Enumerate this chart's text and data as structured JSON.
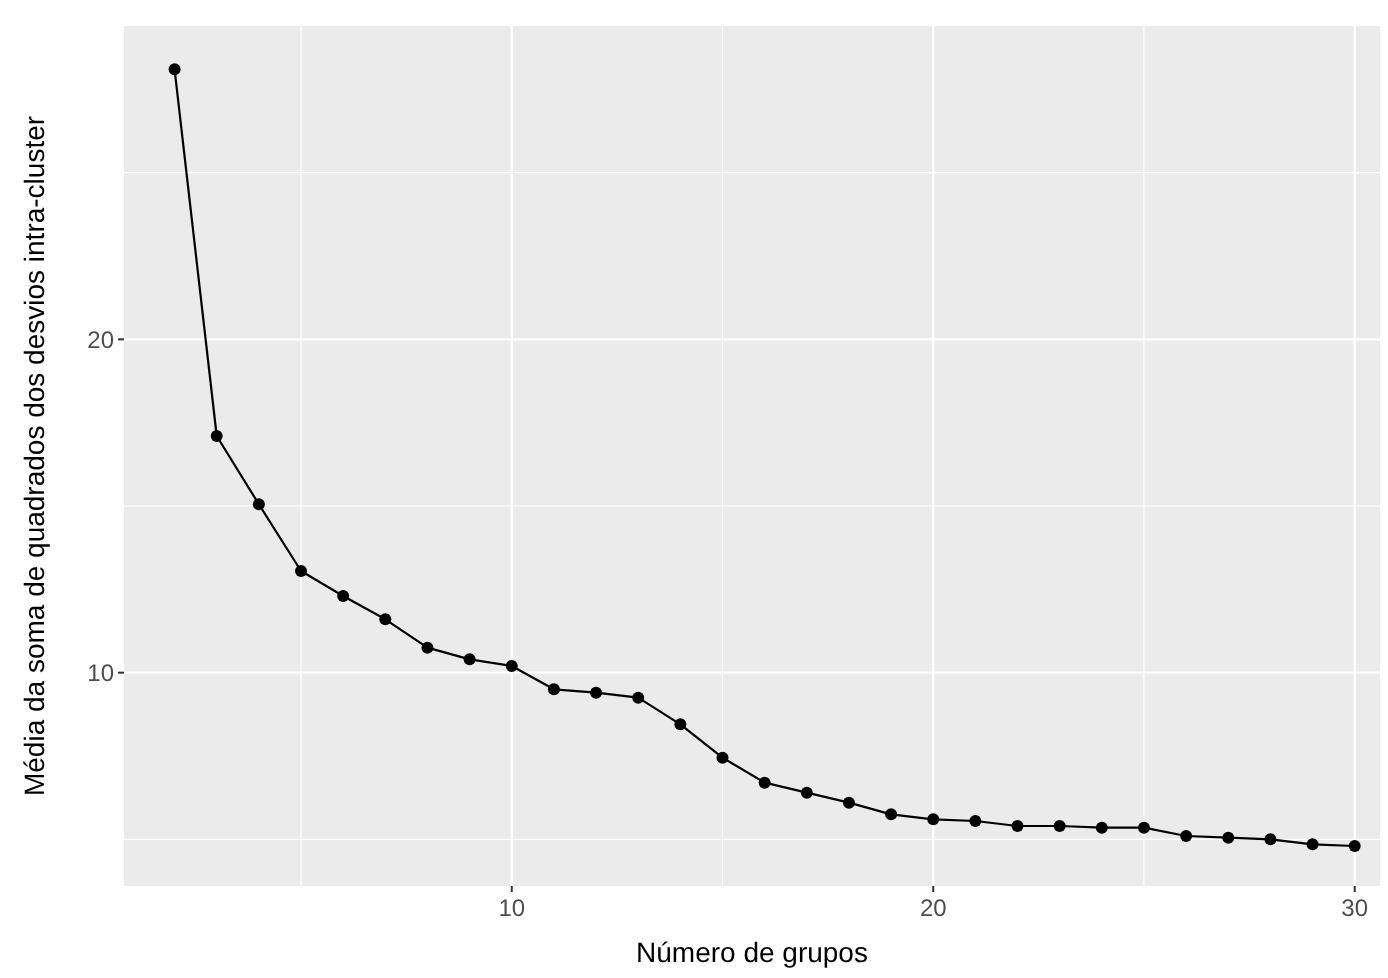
{
  "chart_data": {
    "type": "line",
    "xlabel": "Número de grupos",
    "ylabel": "Média da soma de quadrados dos desvios intra-cluster",
    "x": [
      2,
      3,
      4,
      5,
      6,
      7,
      8,
      9,
      10,
      11,
      12,
      13,
      14,
      15,
      16,
      17,
      18,
      19,
      20,
      21,
      22,
      23,
      24,
      25,
      26,
      27,
      28,
      29,
      30
    ],
    "values": [
      28.1,
      17.1,
      15.05,
      13.05,
      12.3,
      11.6,
      10.75,
      10.4,
      10.2,
      9.5,
      9.4,
      9.25,
      8.45,
      7.45,
      6.7,
      6.4,
      6.1,
      5.75,
      5.6,
      5.55,
      5.4,
      5.4,
      5.35,
      5.35,
      5.1,
      5.05,
      5.0,
      4.85,
      4.8
    ],
    "color": "#000000",
    "marker": "circle",
    "line_style": "solid",
    "grid": true,
    "xlim": [
      0.8,
      30.6
    ],
    "ylim": [
      3.6,
      29.4
    ],
    "xticks": [
      {
        "value": 5,
        "label": null
      },
      10,
      {
        "value": 15,
        "label": null
      },
      20,
      {
        "value": 25,
        "label": null
      },
      30
    ],
    "yticks": [
      {
        "value": 5,
        "label": null
      },
      10,
      {
        "value": 15,
        "label": null
      },
      20,
      {
        "value": 25,
        "label": null
      }
    ]
  }
}
